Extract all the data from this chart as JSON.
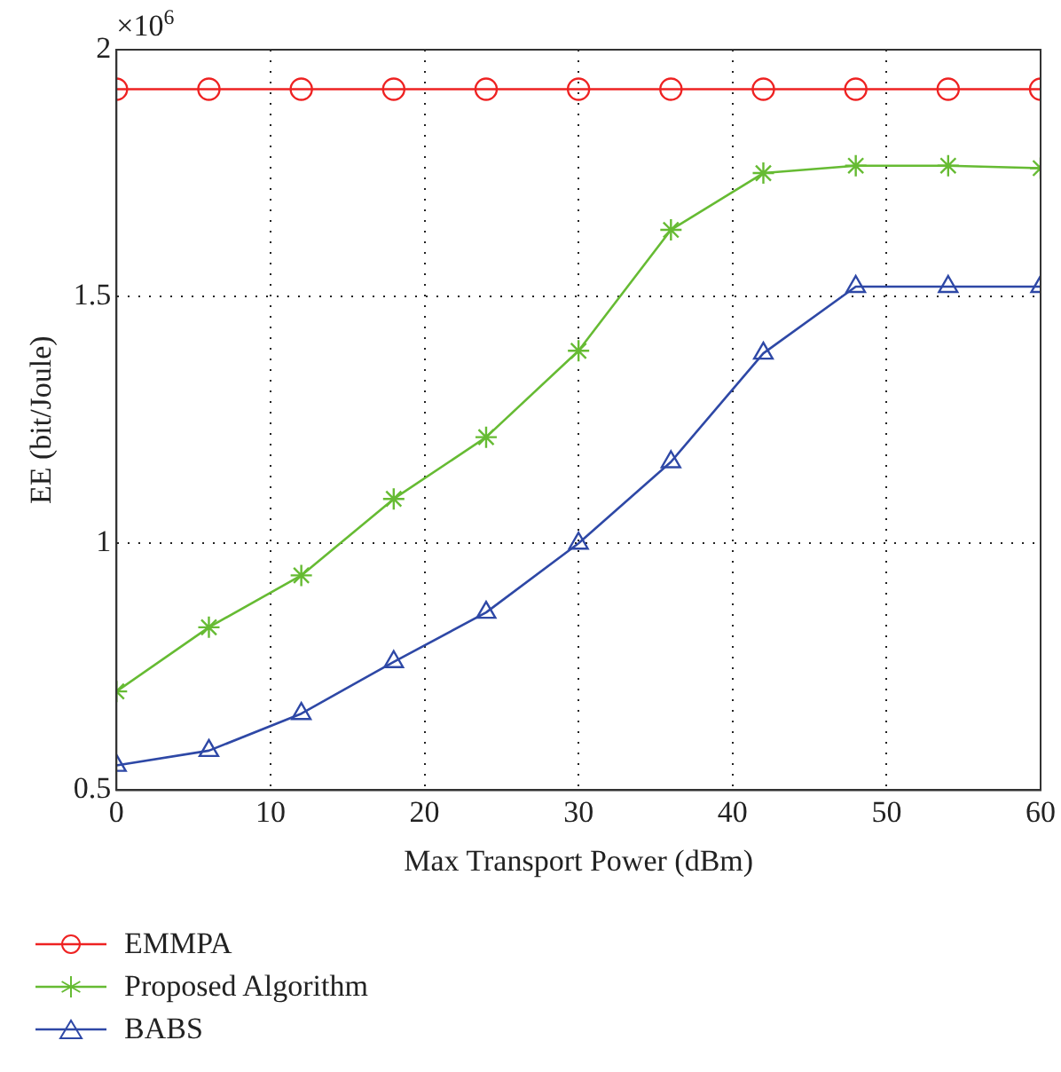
{
  "chart_data": {
    "type": "line",
    "xlabel": "Max Transport Power (dBm)",
    "ylabel": "EE (bit/Joule)",
    "annotations": [
      "×10$^{6}$"
    ],
    "x": [
      0,
      6,
      12,
      18,
      24,
      30,
      36,
      42,
      48,
      54,
      60
    ],
    "series": [
      {
        "name": "EMMPA",
        "color": "#ee2222",
        "marker": "circle",
        "values": [
          1.92,
          1.92,
          1.92,
          1.92,
          1.92,
          1.92,
          1.92,
          1.92,
          1.92,
          1.92,
          1.92
        ]
      },
      {
        "name": "Proposed Algorithm",
        "color": "#66bb33",
        "marker": "cross",
        "values": [
          0.7,
          0.83,
          0.935,
          1.09,
          1.215,
          1.39,
          1.635,
          1.75,
          1.765,
          1.765,
          1.76
        ]
      },
      {
        "name": "BABS",
        "color": "#2e48a6",
        "marker": "triangle",
        "values": [
          0.55,
          0.58,
          0.655,
          0.76,
          0.86,
          1.0,
          1.165,
          1.385,
          1.52,
          1.52,
          1.52
        ]
      }
    ],
    "xlim": [
      0,
      60
    ],
    "xticks": [
      0,
      10,
      20,
      30,
      40,
      50,
      60
    ],
    "ylim": [
      0.5,
      2
    ],
    "yticks": [
      0.5,
      1,
      1.5,
      2
    ],
    "grid": true,
    "legend": "bottom",
    "line_style": "solid"
  }
}
